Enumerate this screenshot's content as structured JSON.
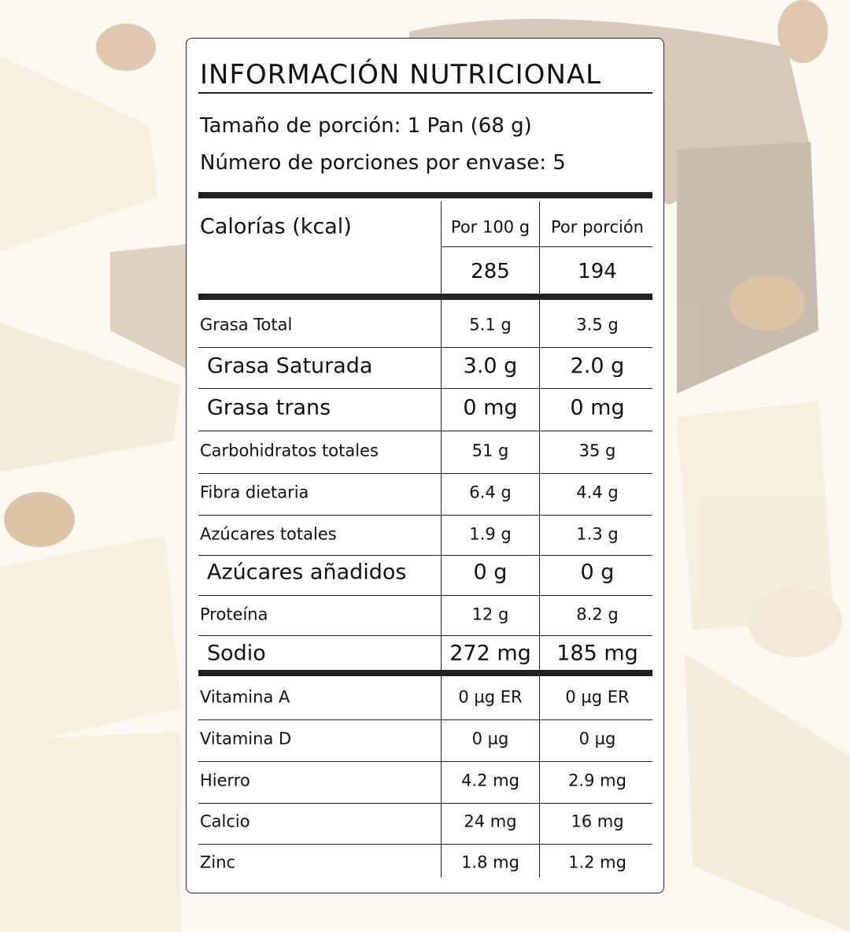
{
  "title": "INFORMACIÓN NUTRICIONAL",
  "serving": [
    "Tamaño de porción: 1 Pan (68 g)",
    "Número de porciones por envase: 5"
  ],
  "header": {
    "label": "Calorías (kcal)",
    "columns": [
      "Por 100 g",
      "Por porción"
    ],
    "values": [
      "285",
      "194"
    ]
  },
  "table": {
    "rows": [
      [
        "Grasa Total",
        "5.1 g",
        "3.5 g"
      ],
      [
        "Grasa Saturada",
        "3.0 g",
        "2.0 g"
      ],
      [
        "Grasa trans",
        "0 mg",
        "0 mg"
      ],
      [
        "Carbohidratos totales",
        "51 g",
        "35 g"
      ],
      [
        "Fibra dietaria",
        "6.4 g",
        "4.4 g"
      ],
      [
        "Azúcares totales",
        "1.9 g",
        "1.3 g"
      ],
      [
        "Azúcares añadidos",
        "0 g",
        "0 g"
      ],
      [
        "Proteína",
        "12 g",
        "8.2 g"
      ],
      [
        "Sodio",
        "272 mg",
        "185 mg"
      ],
      [
        "Vitamina A",
        "0 µg ER",
        "0 µg ER"
      ],
      [
        "Vitamina D",
        "0 µg",
        "0 µg"
      ],
      [
        "Hierro",
        "4.2 mg",
        "2.9 mg"
      ],
      [
        "Calcio",
        "24 mg",
        "16 mg"
      ],
      [
        "Zinc",
        "1.8 mg",
        "1.2 mg"
      ]
    ]
  }
}
